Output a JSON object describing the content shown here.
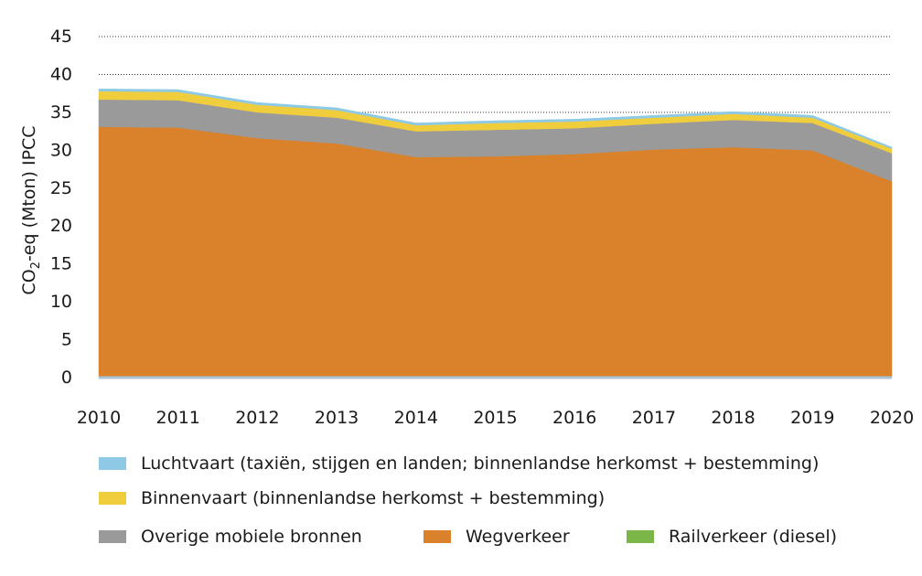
{
  "chart_data": {
    "type": "area",
    "stacked": true,
    "ylabel": "CO2-eq (Mton) IPCC",
    "ylabel_main": "CO",
    "ylabel_sub": "2",
    "ylabel_rest": "-eq (Mton) IPCC",
    "ylim": [
      0,
      45
    ],
    "yticks": [
      "0",
      "5",
      "10",
      "15",
      "20",
      "25",
      "30",
      "35",
      "40",
      "45"
    ],
    "x": [
      "2010",
      "2011",
      "2012",
      "2013",
      "2014",
      "2015",
      "2016",
      "2017",
      "2018",
      "2019",
      "2020"
    ],
    "grid": "horizontal dotted",
    "legend_position": "bottom",
    "series": [
      {
        "name": "Railverkeer (diesel)",
        "color": "#7ab648",
        "values": [
          0.1,
          0.1,
          0.1,
          0.1,
          0.1,
          0.1,
          0.1,
          0.1,
          0.1,
          0.1,
          0.1
        ]
      },
      {
        "name": "Wegverkeer",
        "color": "#d9822b",
        "values": [
          33.0,
          32.9,
          31.5,
          30.8,
          29.0,
          29.1,
          29.4,
          30.0,
          30.3,
          29.9,
          25.8
        ]
      },
      {
        "name": "Overige mobiele bronnen",
        "color": "#9a9a9a",
        "values": [
          3.6,
          3.6,
          3.4,
          3.4,
          3.4,
          3.5,
          3.4,
          3.4,
          3.6,
          3.6,
          3.7
        ]
      },
      {
        "name": "Binnenvaart (binnenlandse herkomst + bestemming)",
        "color": "#f0cd3c",
        "values": [
          1.1,
          1.1,
          1.0,
          1.0,
          0.8,
          0.9,
          0.9,
          0.8,
          0.8,
          0.7,
          0.6
        ]
      },
      {
        "name": "Luchtvaart (taxiën, stijgen en landen; binnenlandse herkomst + bestemming)",
        "color": "#8ecae6",
        "values": [
          0.3,
          0.3,
          0.3,
          0.3,
          0.3,
          0.3,
          0.3,
          0.3,
          0.3,
          0.3,
          0.2
        ]
      }
    ],
    "baseline_color": "#a9c3d6"
  },
  "legend": {
    "items": [
      {
        "label": "Luchtvaart (taxiën, stijgen en landen; binnenlandse herkomst + bestemming)",
        "color": "#8ecae6"
      },
      {
        "label": "Binnenvaart (binnenlandse herkomst + bestemming)",
        "color": "#f0cd3c"
      },
      {
        "label": "Overige mobiele bronnen",
        "color": "#9a9a9a"
      },
      {
        "label": "Wegverkeer",
        "color": "#d9822b"
      },
      {
        "label": "Railverkeer (diesel)",
        "color": "#7ab648"
      }
    ]
  }
}
